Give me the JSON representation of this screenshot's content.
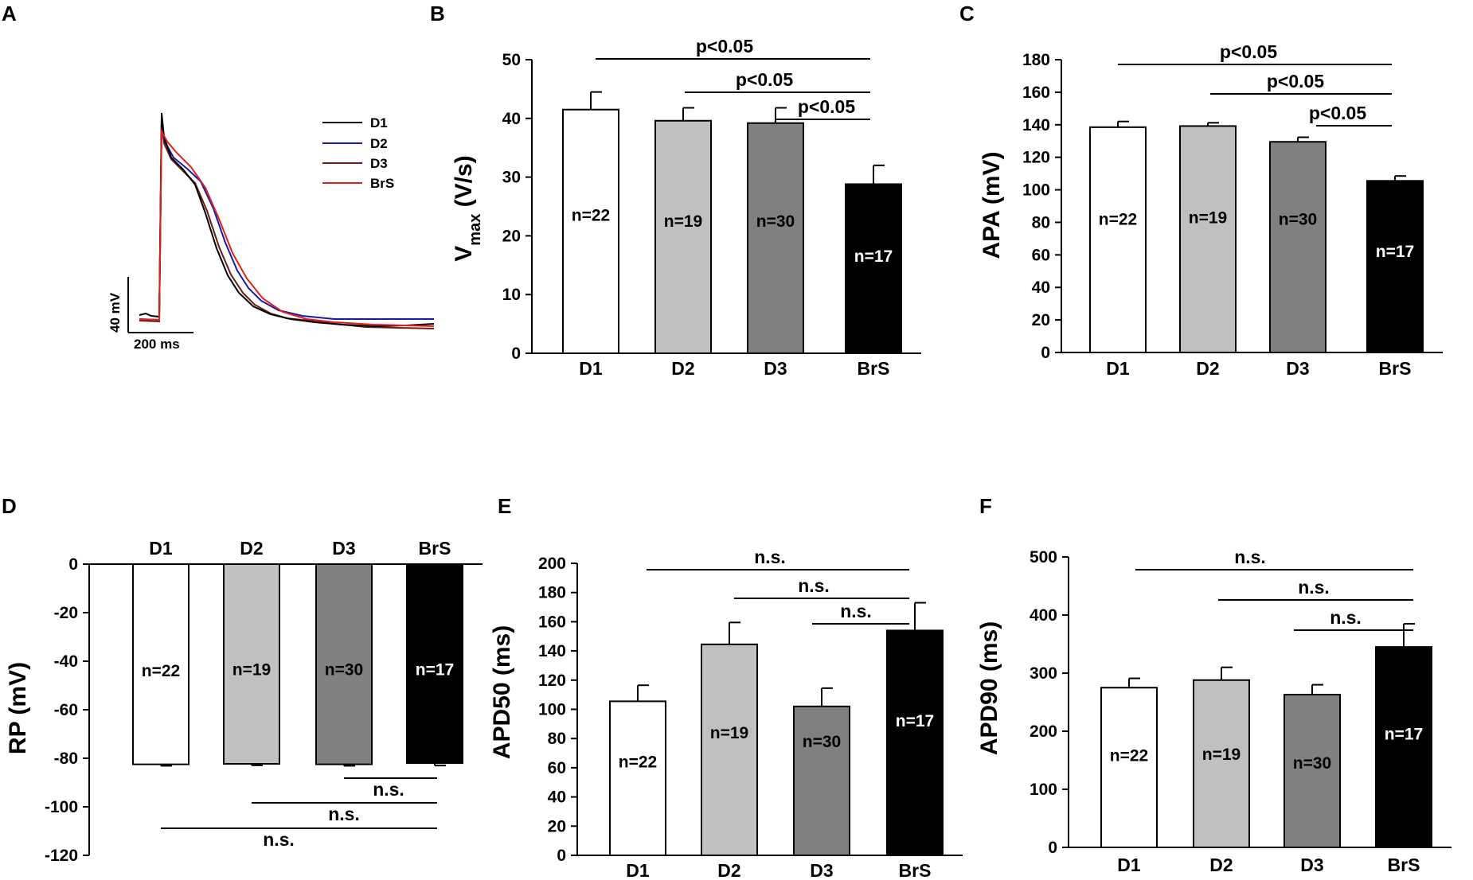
{
  "colors": {
    "D1": "#ffffff",
    "D2": "#c0c0c0",
    "D3": "#808080",
    "BrS": "#000000"
  },
  "chart_data": [
    {
      "panel": "A",
      "type": "line",
      "title": "",
      "series": [
        {
          "name": "D1",
          "color": "#000000"
        },
        {
          "name": "D2",
          "color": "#1a1aa6"
        },
        {
          "name": "D3",
          "color": "#6b1a1a"
        },
        {
          "name": "BrS",
          "color": "#e02020"
        }
      ],
      "scale_bar": {
        "voltage_label": "40 mV",
        "time_label": "200 ms"
      }
    },
    {
      "panel": "B",
      "type": "bar",
      "ylabel_main": "V",
      "ylabel_sub": "max",
      "ylabel_rest": " (V/s)",
      "categories": [
        "D1",
        "D2",
        "D3",
        "BrS"
      ],
      "values": [
        41.5,
        39.6,
        39.2,
        28.8
      ],
      "errors": [
        3.0,
        2.2,
        2.6,
        3.2
      ],
      "n_labels": [
        "n=22",
        "n=19",
        "n=30",
        "n=17"
      ],
      "ylim": [
        0,
        50
      ],
      "yticks": [
        "0",
        "10",
        "20",
        "30",
        "40",
        "50"
      ],
      "n_label_values": [
        23.5,
        22.5,
        22.5,
        16.5
      ],
      "comparisons": [
        {
          "from": 0,
          "to": 3,
          "label": "p<0.05"
        },
        {
          "from": 1,
          "to": 3,
          "label": "p<0.05"
        },
        {
          "from": 2,
          "to": 3,
          "label": "p<0.05"
        }
      ]
    },
    {
      "panel": "C",
      "type": "bar",
      "ylabel": "APA (mV)",
      "categories": [
        "D1",
        "D2",
        "D3",
        "BrS"
      ],
      "values": [
        138.5,
        139.2,
        129.5,
        105.5
      ],
      "errors": [
        3.5,
        2.0,
        2.8,
        3.0
      ],
      "n_labels": [
        "n=22",
        "n=19",
        "n=30",
        "n=17"
      ],
      "ylim": [
        0,
        180
      ],
      "yticks": [
        "0",
        "20",
        "40",
        "60",
        "80",
        "100",
        "120",
        "140",
        "160",
        "180"
      ],
      "n_label_values": [
        82,
        83,
        82,
        62
      ],
      "comparisons": [
        {
          "from": 0,
          "to": 3,
          "label": "p<0.05"
        },
        {
          "from": 1,
          "to": 3,
          "label": "p<0.05"
        },
        {
          "from": 2,
          "to": 3,
          "label": "p<0.05"
        }
      ]
    },
    {
      "panel": "D",
      "type": "bar",
      "ylabel": "RP (mV)",
      "inverted": true,
      "categories": [
        "D1",
        "D2",
        "D3",
        "BrS"
      ],
      "values": [
        -82.5,
        -82.3,
        -82.5,
        -82.0
      ],
      "errors": [
        0.6,
        0.6,
        0.6,
        1.0
      ],
      "n_labels": [
        "n=22",
        "n=19",
        "n=30",
        "n=17"
      ],
      "ylim": [
        -120,
        0
      ],
      "yticks": [
        "0",
        "-20",
        "-40",
        "-60",
        "-80",
        "-100",
        "-120"
      ],
      "n_label_values": [
        -44,
        -43.5,
        -43.5,
        -43.5
      ],
      "comparisons": [
        {
          "from": 2,
          "to": 3,
          "label": "n.s."
        },
        {
          "from": 1,
          "to": 3,
          "label": "n.s."
        },
        {
          "from": 0,
          "to": 3,
          "label": "n.s."
        }
      ]
    },
    {
      "panel": "E",
      "type": "bar",
      "ylabel": "APD50 (ms)",
      "categories": [
        "D1",
        "D2",
        "D3",
        "BrS"
      ],
      "values": [
        105.5,
        144.5,
        102.0,
        154.0
      ],
      "errors": [
        11.0,
        15.0,
        12.5,
        19.0
      ],
      "n_labels": [
        "n=22",
        "n=19",
        "n=30",
        "n=17"
      ],
      "ylim": [
        0,
        200
      ],
      "yticks": [
        "0",
        "20",
        "40",
        "60",
        "80",
        "100",
        "120",
        "140",
        "160",
        "180",
        "200"
      ],
      "n_label_values": [
        64,
        84,
        78,
        92
      ],
      "comparisons": [
        {
          "from": 0,
          "to": 3,
          "label": "n.s."
        },
        {
          "from": 1,
          "to": 3,
          "label": "n.s."
        },
        {
          "from": 2,
          "to": 3,
          "label": "n.s."
        }
      ]
    },
    {
      "panel": "F",
      "type": "bar",
      "ylabel": "APD90 (ms)",
      "categories": [
        "D1",
        "D2",
        "D3",
        "BrS"
      ],
      "values": [
        275,
        288,
        263,
        345
      ],
      "errors": [
        16,
        22,
        17,
        40
      ],
      "n_labels": [
        "n=22",
        "n=19",
        "n=30",
        "n=17"
      ],
      "ylim": [
        0,
        500
      ],
      "yticks": [
        "0",
        "100",
        "200",
        "300",
        "400",
        "500"
      ],
      "n_label_values": [
        158,
        160,
        145,
        195
      ],
      "comparisons": [
        {
          "from": 0,
          "to": 3,
          "label": "n.s."
        },
        {
          "from": 1,
          "to": 3,
          "label": "n.s."
        },
        {
          "from": 2,
          "to": 3,
          "label": "n.s."
        }
      ]
    }
  ]
}
